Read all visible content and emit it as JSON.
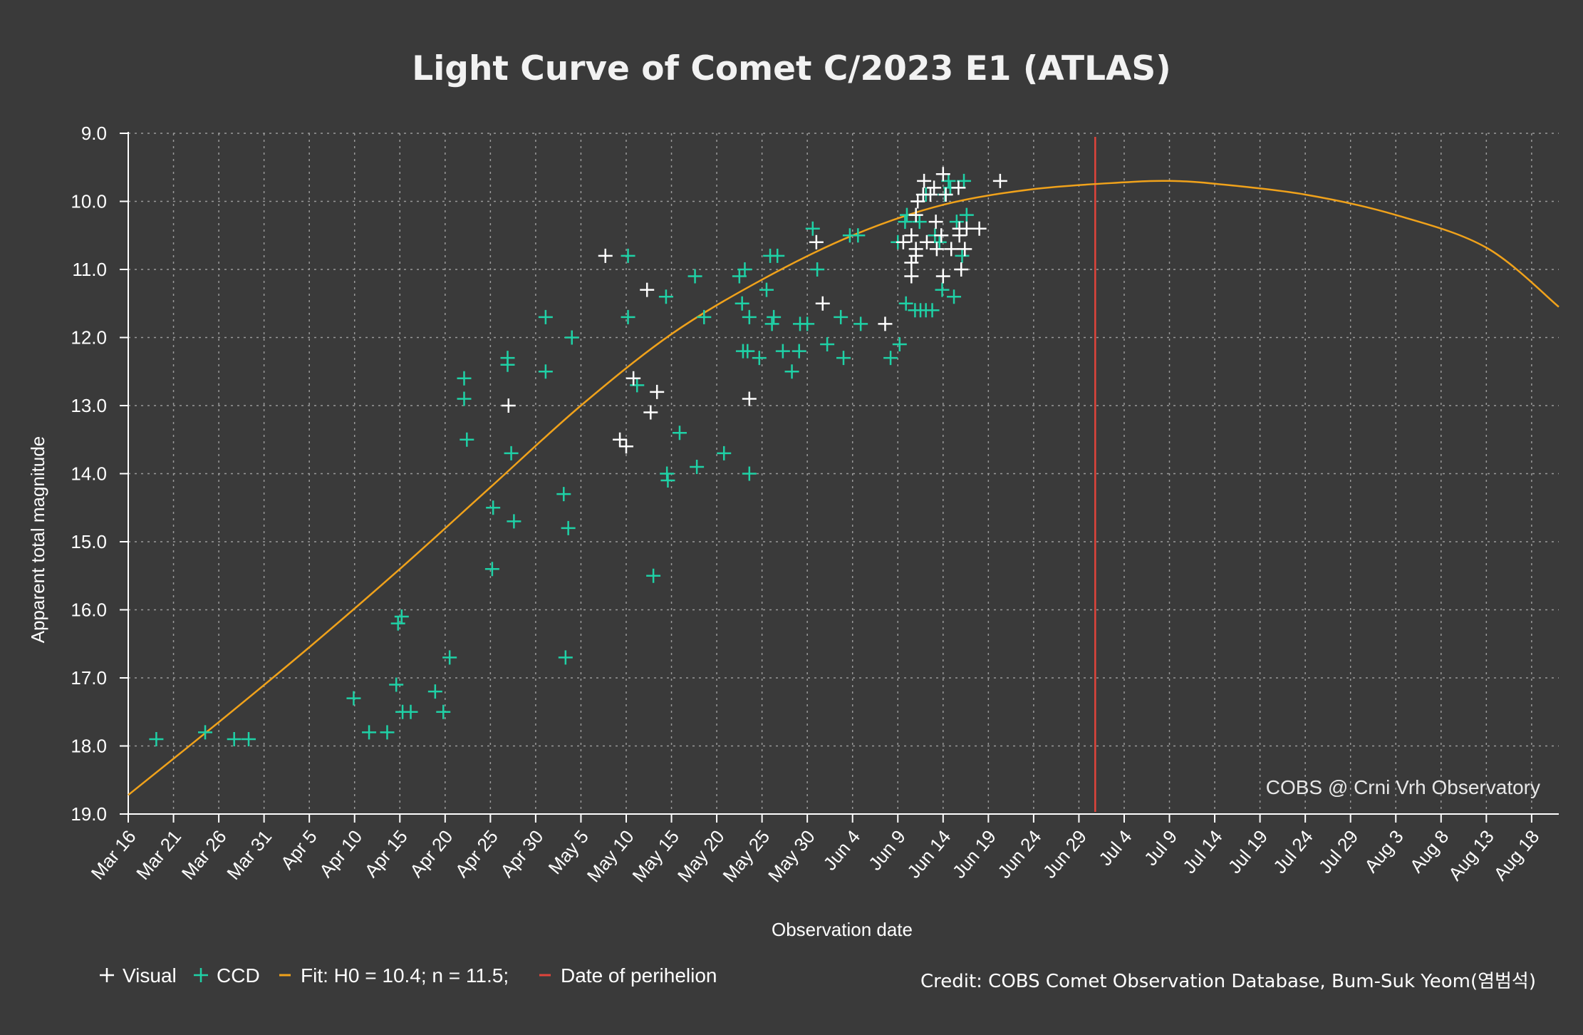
{
  "chart_data": {
    "type": "scatter",
    "title": "Light Curve of Comet C/2023 E1 (ATLAS)",
    "xlabel": "Observation date",
    "ylabel": "Apparent total magnitude",
    "xlim_day": [
      0,
      158
    ],
    "ylim": [
      19.0,
      9.0
    ],
    "y_inverted": true,
    "grid": true,
    "x_ticks": [
      {
        "day": 0,
        "label": "Mar 16"
      },
      {
        "day": 5,
        "label": "Mar 21"
      },
      {
        "day": 10,
        "label": "Mar 26"
      },
      {
        "day": 15,
        "label": "Mar 31"
      },
      {
        "day": 20,
        "label": "Apr 5"
      },
      {
        "day": 25,
        "label": "Apr 10"
      },
      {
        "day": 30,
        "label": "Apr 15"
      },
      {
        "day": 35,
        "label": "Apr 20"
      },
      {
        "day": 40,
        "label": "Apr 25"
      },
      {
        "day": 45,
        "label": "Apr 30"
      },
      {
        "day": 50,
        "label": "May 5"
      },
      {
        "day": 55,
        "label": "May 10"
      },
      {
        "day": 60,
        "label": "May 15"
      },
      {
        "day": 65,
        "label": "May 20"
      },
      {
        "day": 70,
        "label": "May 25"
      },
      {
        "day": 75,
        "label": "May 30"
      },
      {
        "day": 80,
        "label": "Jun 4"
      },
      {
        "day": 85,
        "label": "Jun 9"
      },
      {
        "day": 90,
        "label": "Jun 14"
      },
      {
        "day": 95,
        "label": "Jun 19"
      },
      {
        "day": 100,
        "label": "Jun 24"
      },
      {
        "day": 105,
        "label": "Jun 29"
      },
      {
        "day": 110,
        "label": "Jul 4"
      },
      {
        "day": 115,
        "label": "Jul 9"
      },
      {
        "day": 120,
        "label": "Jul 14"
      },
      {
        "day": 125,
        "label": "Jul 19"
      },
      {
        "day": 130,
        "label": "Jul 24"
      },
      {
        "day": 135,
        "label": "Jul 29"
      },
      {
        "day": 140,
        "label": "Aug 3"
      },
      {
        "day": 145,
        "label": "Aug 8"
      },
      {
        "day": 150,
        "label": "Aug 13"
      },
      {
        "day": 155,
        "label": "Aug 18"
      }
    ],
    "y_ticks": [
      {
        "value": 9.0,
        "label": "9.0"
      },
      {
        "value": 10.0,
        "label": "10.0"
      },
      {
        "value": 11.0,
        "label": "11.0"
      },
      {
        "value": 12.0,
        "label": "12.0"
      },
      {
        "value": 13.0,
        "label": "13.0"
      },
      {
        "value": 14.0,
        "label": "14.0"
      },
      {
        "value": 15.0,
        "label": "15.0"
      },
      {
        "value": 16.0,
        "label": "16.0"
      },
      {
        "value": 17.0,
        "label": "17.0"
      },
      {
        "value": 18.0,
        "label": "18.0"
      },
      {
        "value": 19.0,
        "label": "19.0"
      }
    ],
    "series": [
      {
        "name": "Visual",
        "marker": "+",
        "color": "#ffffff",
        "points": [
          [
            52.7,
            10.8
          ],
          [
            55.8,
            12.6
          ],
          [
            55.0,
            13.6
          ],
          [
            54.3,
            13.5
          ],
          [
            57.3,
            11.3
          ],
          [
            58.4,
            12.8
          ],
          [
            57.7,
            13.1
          ],
          [
            42.0,
            13.0
          ],
          [
            68.6,
            12.9
          ],
          [
            76.0,
            10.6
          ],
          [
            76.7,
            11.5
          ],
          [
            83.6,
            11.8
          ],
          [
            85.6,
            10.6
          ],
          [
            86.5,
            10.5
          ],
          [
            86.5,
            10.9
          ],
          [
            86.5,
            11.1
          ],
          [
            87.0,
            10.7
          ],
          [
            87.0,
            10.8
          ],
          [
            87.0,
            10.2
          ],
          [
            87.2,
            10.0
          ],
          [
            87.8,
            9.9
          ],
          [
            87.9,
            9.7
          ],
          [
            88.2,
            10.6
          ],
          [
            88.6,
            9.9
          ],
          [
            89.0,
            9.8
          ],
          [
            89.2,
            10.3
          ],
          [
            89.3,
            10.7
          ],
          [
            89.8,
            10.5
          ],
          [
            90.0,
            9.6
          ],
          [
            90.0,
            11.1
          ],
          [
            90.3,
            9.9
          ],
          [
            90.9,
            10.7
          ],
          [
            91.7,
            9.8
          ],
          [
            91.8,
            10.5
          ],
          [
            91.8,
            10.4
          ],
          [
            92.0,
            11.0
          ],
          [
            92.4,
            10.7
          ],
          [
            92.6,
            10.4
          ],
          [
            94.0,
            10.4
          ],
          [
            96.3,
            9.7
          ]
        ]
      },
      {
        "name": "CCD",
        "marker": "+",
        "color": "#1fd1a6",
        "points": [
          [
            3.1,
            17.9
          ],
          [
            8.5,
            17.8
          ],
          [
            11.7,
            17.9
          ],
          [
            13.3,
            17.9
          ],
          [
            24.9,
            17.3
          ],
          [
            26.6,
            17.8
          ],
          [
            28.6,
            17.8
          ],
          [
            29.6,
            17.1
          ],
          [
            29.8,
            16.2
          ],
          [
            30.2,
            16.1
          ],
          [
            30.3,
            17.5
          ],
          [
            31.2,
            17.5
          ],
          [
            33.9,
            17.2
          ],
          [
            34.8,
            17.5
          ],
          [
            35.5,
            16.7
          ],
          [
            37.1,
            12.6
          ],
          [
            37.1,
            12.9
          ],
          [
            37.4,
            13.5
          ],
          [
            40.3,
            14.5
          ],
          [
            40.2,
            15.4
          ],
          [
            41.9,
            12.3
          ],
          [
            41.9,
            12.4
          ],
          [
            42.3,
            13.7
          ],
          [
            42.6,
            14.7
          ],
          [
            46.1,
            11.7
          ],
          [
            46.1,
            12.5
          ],
          [
            48.1,
            14.3
          ],
          [
            48.3,
            16.7
          ],
          [
            48.6,
            14.8
          ],
          [
            49.0,
            12.0
          ],
          [
            55.2,
            10.8
          ],
          [
            55.2,
            11.7
          ],
          [
            56.2,
            12.7
          ],
          [
            58.0,
            15.5
          ],
          [
            59.4,
            11.4
          ],
          [
            59.5,
            14.0
          ],
          [
            59.6,
            14.1
          ],
          [
            60.9,
            13.4
          ],
          [
            62.6,
            11.1
          ],
          [
            62.8,
            13.9
          ],
          [
            63.6,
            11.7
          ],
          [
            65.8,
            13.7
          ],
          [
            67.5,
            11.1
          ],
          [
            67.8,
            11.5
          ],
          [
            67.9,
            12.2
          ],
          [
            68.1,
            11.0
          ],
          [
            68.4,
            12.2
          ],
          [
            68.6,
            14.0
          ],
          [
            68.6,
            11.7
          ],
          [
            69.7,
            12.3
          ],
          [
            70.5,
            11.3
          ],
          [
            70.9,
            10.8
          ],
          [
            71.1,
            11.8
          ],
          [
            71.3,
            11.7
          ],
          [
            71.7,
            10.8
          ],
          [
            72.3,
            12.2
          ],
          [
            73.3,
            12.5
          ],
          [
            74.1,
            12.2
          ],
          [
            74.2,
            11.8
          ],
          [
            75.0,
            11.8
          ],
          [
            75.6,
            10.4
          ],
          [
            76.1,
            11.0
          ],
          [
            77.2,
            12.1
          ],
          [
            78.7,
            11.7
          ],
          [
            79.0,
            12.3
          ],
          [
            79.7,
            10.5
          ],
          [
            80.6,
            10.5
          ],
          [
            80.9,
            11.8
          ],
          [
            84.2,
            12.3
          ],
          [
            85.0,
            10.6
          ],
          [
            85.2,
            12.1
          ],
          [
            85.8,
            10.3
          ],
          [
            85.9,
            11.5
          ],
          [
            86.0,
            10.2
          ],
          [
            86.9,
            11.6
          ],
          [
            87.4,
            10.3
          ],
          [
            87.5,
            11.6
          ],
          [
            88.1,
            9.9
          ],
          [
            88.1,
            11.6
          ],
          [
            88.8,
            11.6
          ],
          [
            89.1,
            10.5
          ],
          [
            89.6,
            10.6
          ],
          [
            89.9,
            11.3
          ],
          [
            90.2,
            9.9
          ],
          [
            90.6,
            9.7
          ],
          [
            90.8,
            9.8
          ],
          [
            91.2,
            11.4
          ],
          [
            91.5,
            10.3
          ],
          [
            92.3,
            9.7
          ],
          [
            92.1,
            10.8
          ],
          [
            92.6,
            10.2
          ]
        ]
      }
    ],
    "fit": {
      "name": "Fit: H0 = 10.4; n = 11.5;",
      "color": "#f0a21b",
      "points": [
        [
          0,
          18.72
        ],
        [
          10,
          17.65
        ],
        [
          20,
          16.55
        ],
        [
          30,
          15.4
        ],
        [
          40,
          14.2
        ],
        [
          50,
          13.0
        ],
        [
          60,
          11.95
        ],
        [
          70,
          11.15
        ],
        [
          80,
          10.5
        ],
        [
          90,
          10.05
        ],
        [
          100,
          9.82
        ],
        [
          110,
          9.72
        ],
        [
          115,
          9.7
        ],
        [
          120,
          9.74
        ],
        [
          130,
          9.9
        ],
        [
          140,
          10.2
        ],
        [
          150,
          10.68
        ],
        [
          158,
          11.55
        ]
      ]
    },
    "perihelion": {
      "name": "Date of perihelion",
      "day": 106.8,
      "color": "#e0443b"
    },
    "annotation": "COBS @ Crni Vrh Observatory",
    "legend": [
      {
        "symbol": "+",
        "label": "Visual",
        "color": "#ffffff"
      },
      {
        "symbol": "+",
        "label": "CCD",
        "color": "#1fd1a6"
      },
      {
        "symbol": "–",
        "label": "Fit: H0 = 10.4; n = 11.5;",
        "color": "#f0a21b"
      },
      {
        "symbol": "–",
        "label": "Date of perihelion",
        "color": "#e0443b"
      }
    ],
    "legend_position": "bottom-left",
    "credit": "Credit: COBS Comet Observation Database, Bum-Suk Yeom(염범석)"
  }
}
